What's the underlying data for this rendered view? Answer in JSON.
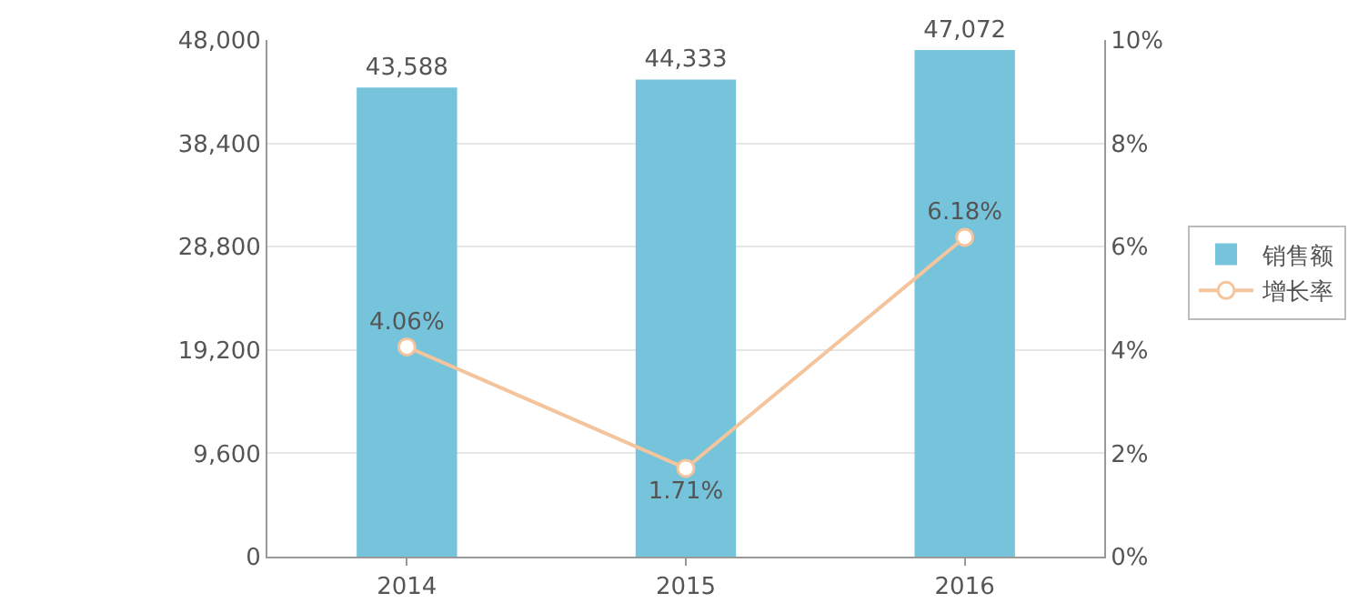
{
  "chart_data": {
    "type": "bar",
    "categories": [
      "2014",
      "2015",
      "2016"
    ],
    "series": [
      {
        "name": "销售额",
        "color": "#76c4dc",
        "values": [
          43588,
          44333,
          47072
        ],
        "value_labels": [
          "43,588",
          "44,333",
          "47,072"
        ]
      },
      {
        "name": "增长率",
        "type": "line",
        "axis": "y2",
        "color": "#f4c49c",
        "values": [
          4.06,
          1.71,
          6.18
        ],
        "value_labels": [
          "4.06%",
          "1.71%",
          "6.18%"
        ]
      }
    ],
    "ylim": [
      0,
      48000
    ],
    "yticks": [
      0,
      {
        "value": 9600,
        "label": "9,600"
      },
      {
        "value": 19200,
        "label": "19,200"
      },
      {
        "value": 28800,
        "label": "28,800"
      },
      {
        "value": 38400,
        "label": "38,400"
      },
      {
        "value": 48000,
        "label": "48,000"
      }
    ],
    "y2lim": [
      0,
      10
    ],
    "y2ticks": [
      {
        "value": 0,
        "label": "0%"
      },
      {
        "value": 2,
        "label": "2%"
      },
      {
        "value": 4,
        "label": "4%"
      },
      {
        "value": 6,
        "label": "6%"
      },
      {
        "value": 8,
        "label": "8%"
      },
      {
        "value": 10,
        "label": "10%"
      }
    ],
    "grid": "y",
    "legend": "right",
    "marker": "circle"
  }
}
